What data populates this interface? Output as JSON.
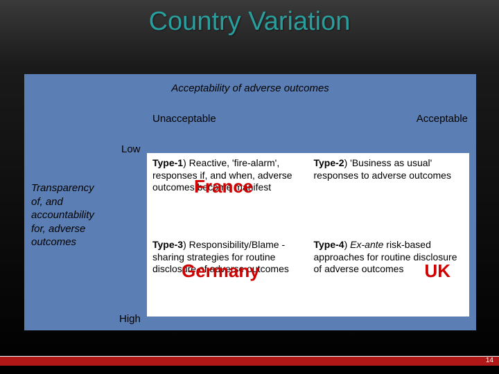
{
  "title": "Country Variation",
  "topHeader": "Acceptability of adverse outcomes",
  "scaleLeft": "Unacceptable",
  "scaleRight": "Acceptable",
  "lowLabel": "Low",
  "highLabel": "High",
  "sideLabel": "Transparency of, and accountability for, adverse outcomes",
  "cells": {
    "c1": {
      "label": "Type-1",
      "text": ") Reactive, 'fire-alarm', responses if, and when, adverse outcomes become manifest",
      "country": "France"
    },
    "c2": {
      "label": "Type-2",
      "text1": ") 'Business as usual'",
      "text2": "responses to adverse outcomes"
    },
    "c3": {
      "label": "Type-3",
      "text": ") Responsibility/Blame -sharing  strategies for routine disclosure of adverse outcomes",
      "country": "Germany"
    },
    "c4": {
      "label": "Type-4",
      "text1": ") ",
      "italic": "Ex-ante",
      "text2": " risk-based approaches for routine disclosure of adverse outcomes",
      "country": "UK"
    }
  },
  "pageNumber": "14"
}
